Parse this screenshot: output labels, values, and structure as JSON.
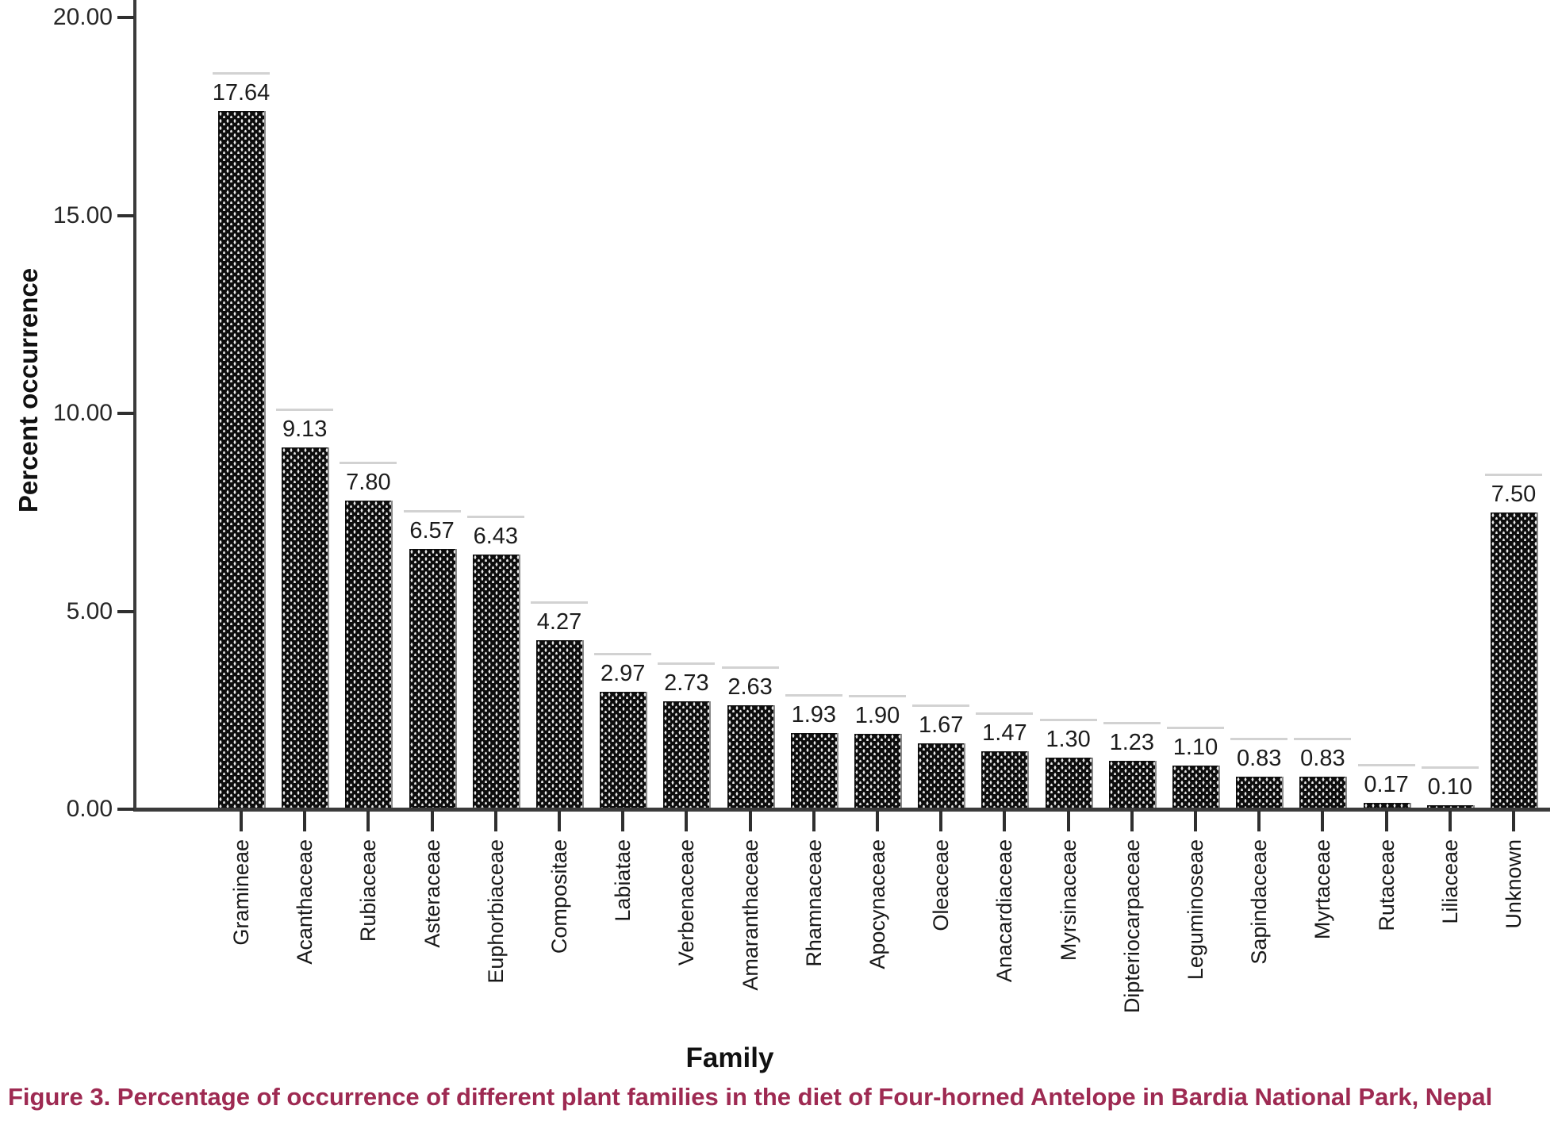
{
  "figure": {
    "caption": "Figure 3. Percentage of occurrence of different plant families in the diet of Four-horned Antelope in Bardia National Park, Nepal",
    "caption_color": "#9e2a52"
  },
  "chart_data": {
    "type": "bar",
    "title": "",
    "xlabel": "Family",
    "ylabel": "Percent occurrence",
    "ylim": [
      0,
      20
    ],
    "yticks": [
      "0.00",
      "5.00",
      "10.00",
      "15.00",
      "20.00"
    ],
    "grid": false,
    "legend": "none",
    "bar_color": "#0d0d0d",
    "bar_pattern_dot_color": "#e8e8e8",
    "categories": [
      "Gramineae",
      "Acanthaceae",
      "Rubiaceae",
      "Asteraceae",
      "Euphorbiaceae",
      "Compositae",
      "Labiatae",
      "Verbenaceae",
      "Amaranthaceae",
      "Rhamnaceae",
      "Apocynaceae",
      "Oleaceae",
      "Anacardiaceae",
      "Myrsinaceae",
      "Dipteriocarpaceae",
      "Leguminoseae",
      "Sapindaceae",
      "Myrtaceae",
      "Rutaceae",
      "Liliaceae",
      "Unknown"
    ],
    "values": [
      17.64,
      9.13,
      7.8,
      6.57,
      6.43,
      4.27,
      2.97,
      2.73,
      2.63,
      1.93,
      1.9,
      1.67,
      1.47,
      1.3,
      1.23,
      1.1,
      0.83,
      0.83,
      0.17,
      0.1,
      7.5
    ],
    "value_labels": [
      "17.64",
      "9.13",
      "7.80",
      "6.57",
      "6.43",
      "4.27",
      "2.97",
      "2.73",
      "2.63",
      "1.93",
      "1.90",
      "1.67",
      "1.47",
      "1.30",
      "1.23",
      "1.10",
      "0.83",
      "0.83",
      "0.17",
      "0.10",
      "7.50"
    ]
  }
}
